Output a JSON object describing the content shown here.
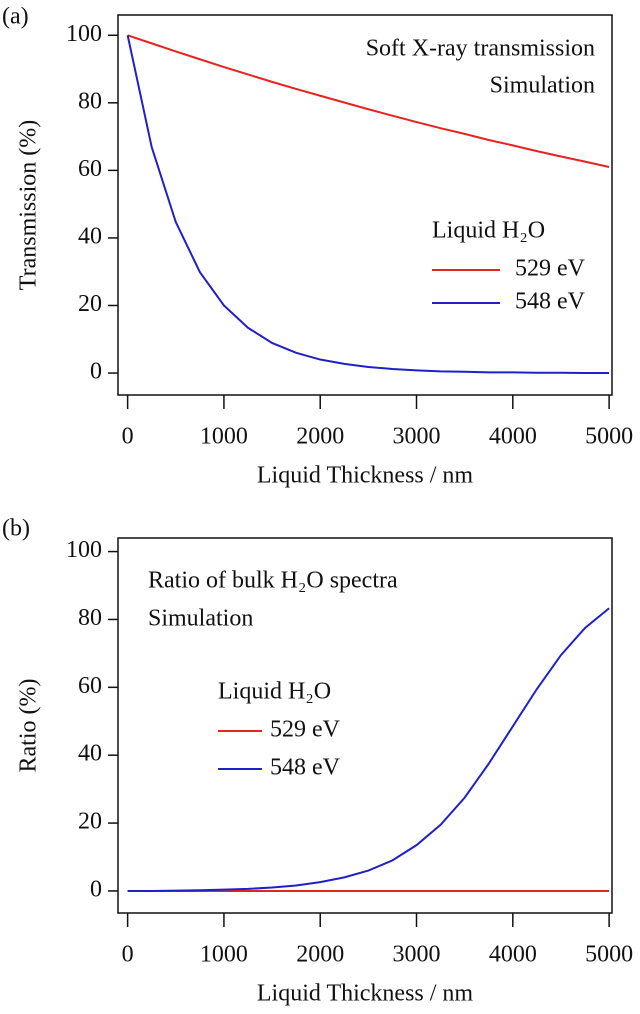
{
  "chart_data": [
    {
      "type": "line",
      "panel_label": "(a)",
      "annotations": [
        "Soft X-ray transmission",
        "Simulation"
      ],
      "xlabel": "Liquid Thickness / nm",
      "ylabel": "Transmission (%)",
      "legend_title": "Liquid H₂O",
      "x": [
        0,
        250,
        500,
        750,
        1000,
        1250,
        1500,
        1750,
        2000,
        2250,
        2500,
        2750,
        3000,
        3250,
        3500,
        3750,
        4000,
        4250,
        4500,
        4750,
        5000
      ],
      "series": [
        {
          "name": "529 eV",
          "color": "#e8231f",
          "values": [
            100,
            97.6,
            95.2,
            92.9,
            90.6,
            88.4,
            86.2,
            84.1,
            82.1,
            80.1,
            78.1,
            76.2,
            74.3,
            72.5,
            70.8,
            69.0,
            67.4,
            65.7,
            64.1,
            62.6,
            61.0
          ]
        },
        {
          "name": "548 eV",
          "color": "#2020c8",
          "values": [
            100,
            66.9,
            44.7,
            29.9,
            20.0,
            13.4,
            8.9,
            6.0,
            4.0,
            2.7,
            1.8,
            1.2,
            0.8,
            0.5,
            0.4,
            0.2,
            0.2,
            0.1,
            0.1,
            0.0,
            0.0
          ]
        }
      ],
      "xlim": [
        -100,
        5030
      ],
      "ylim": [
        -6.5,
        106
      ],
      "xticks": [
        0,
        1000,
        2000,
        3000,
        4000,
        5000
      ],
      "yticks": [
        0,
        20,
        40,
        60,
        80,
        100
      ]
    },
    {
      "type": "line",
      "panel_label": "(b)",
      "annotations": [
        "Ratio of bulk H₂O spectra",
        "Simulation"
      ],
      "xlabel": "Liquid Thickness / nm",
      "ylabel": "Ratio (%)",
      "legend_title": "Liquid H₂O",
      "x": [
        0,
        250,
        500,
        750,
        1000,
        1250,
        1500,
        1750,
        2000,
        2250,
        2500,
        2750,
        3000,
        3250,
        3500,
        3750,
        4000,
        4250,
        4500,
        4750,
        5000
      ],
      "series": [
        {
          "name": "529 eV",
          "color": "#e8231f",
          "values": [
            0,
            0,
            0,
            0,
            0,
            0,
            0,
            0,
            0,
            0,
            0,
            0,
            0,
            0,
            0,
            0,
            0,
            0,
            0,
            0,
            0
          ]
        },
        {
          "name": "548 eV",
          "color": "#2020c8",
          "values": [
            0,
            0,
            0.1,
            0.2,
            0.4,
            0.6,
            1.0,
            1.6,
            2.6,
            4.0,
            6.0,
            9.0,
            13.5,
            19.5,
            27.5,
            37.5,
            48.5,
            59.5,
            69.5,
            77.5,
            83.3
          ]
        }
      ],
      "xlim": [
        -100,
        5030
      ],
      "ylim": [
        -6.5,
        104
      ],
      "xticks": [
        0,
        1000,
        2000,
        3000,
        4000,
        5000
      ],
      "yticks": [
        0,
        20,
        40,
        60,
        80,
        100
      ]
    }
  ]
}
